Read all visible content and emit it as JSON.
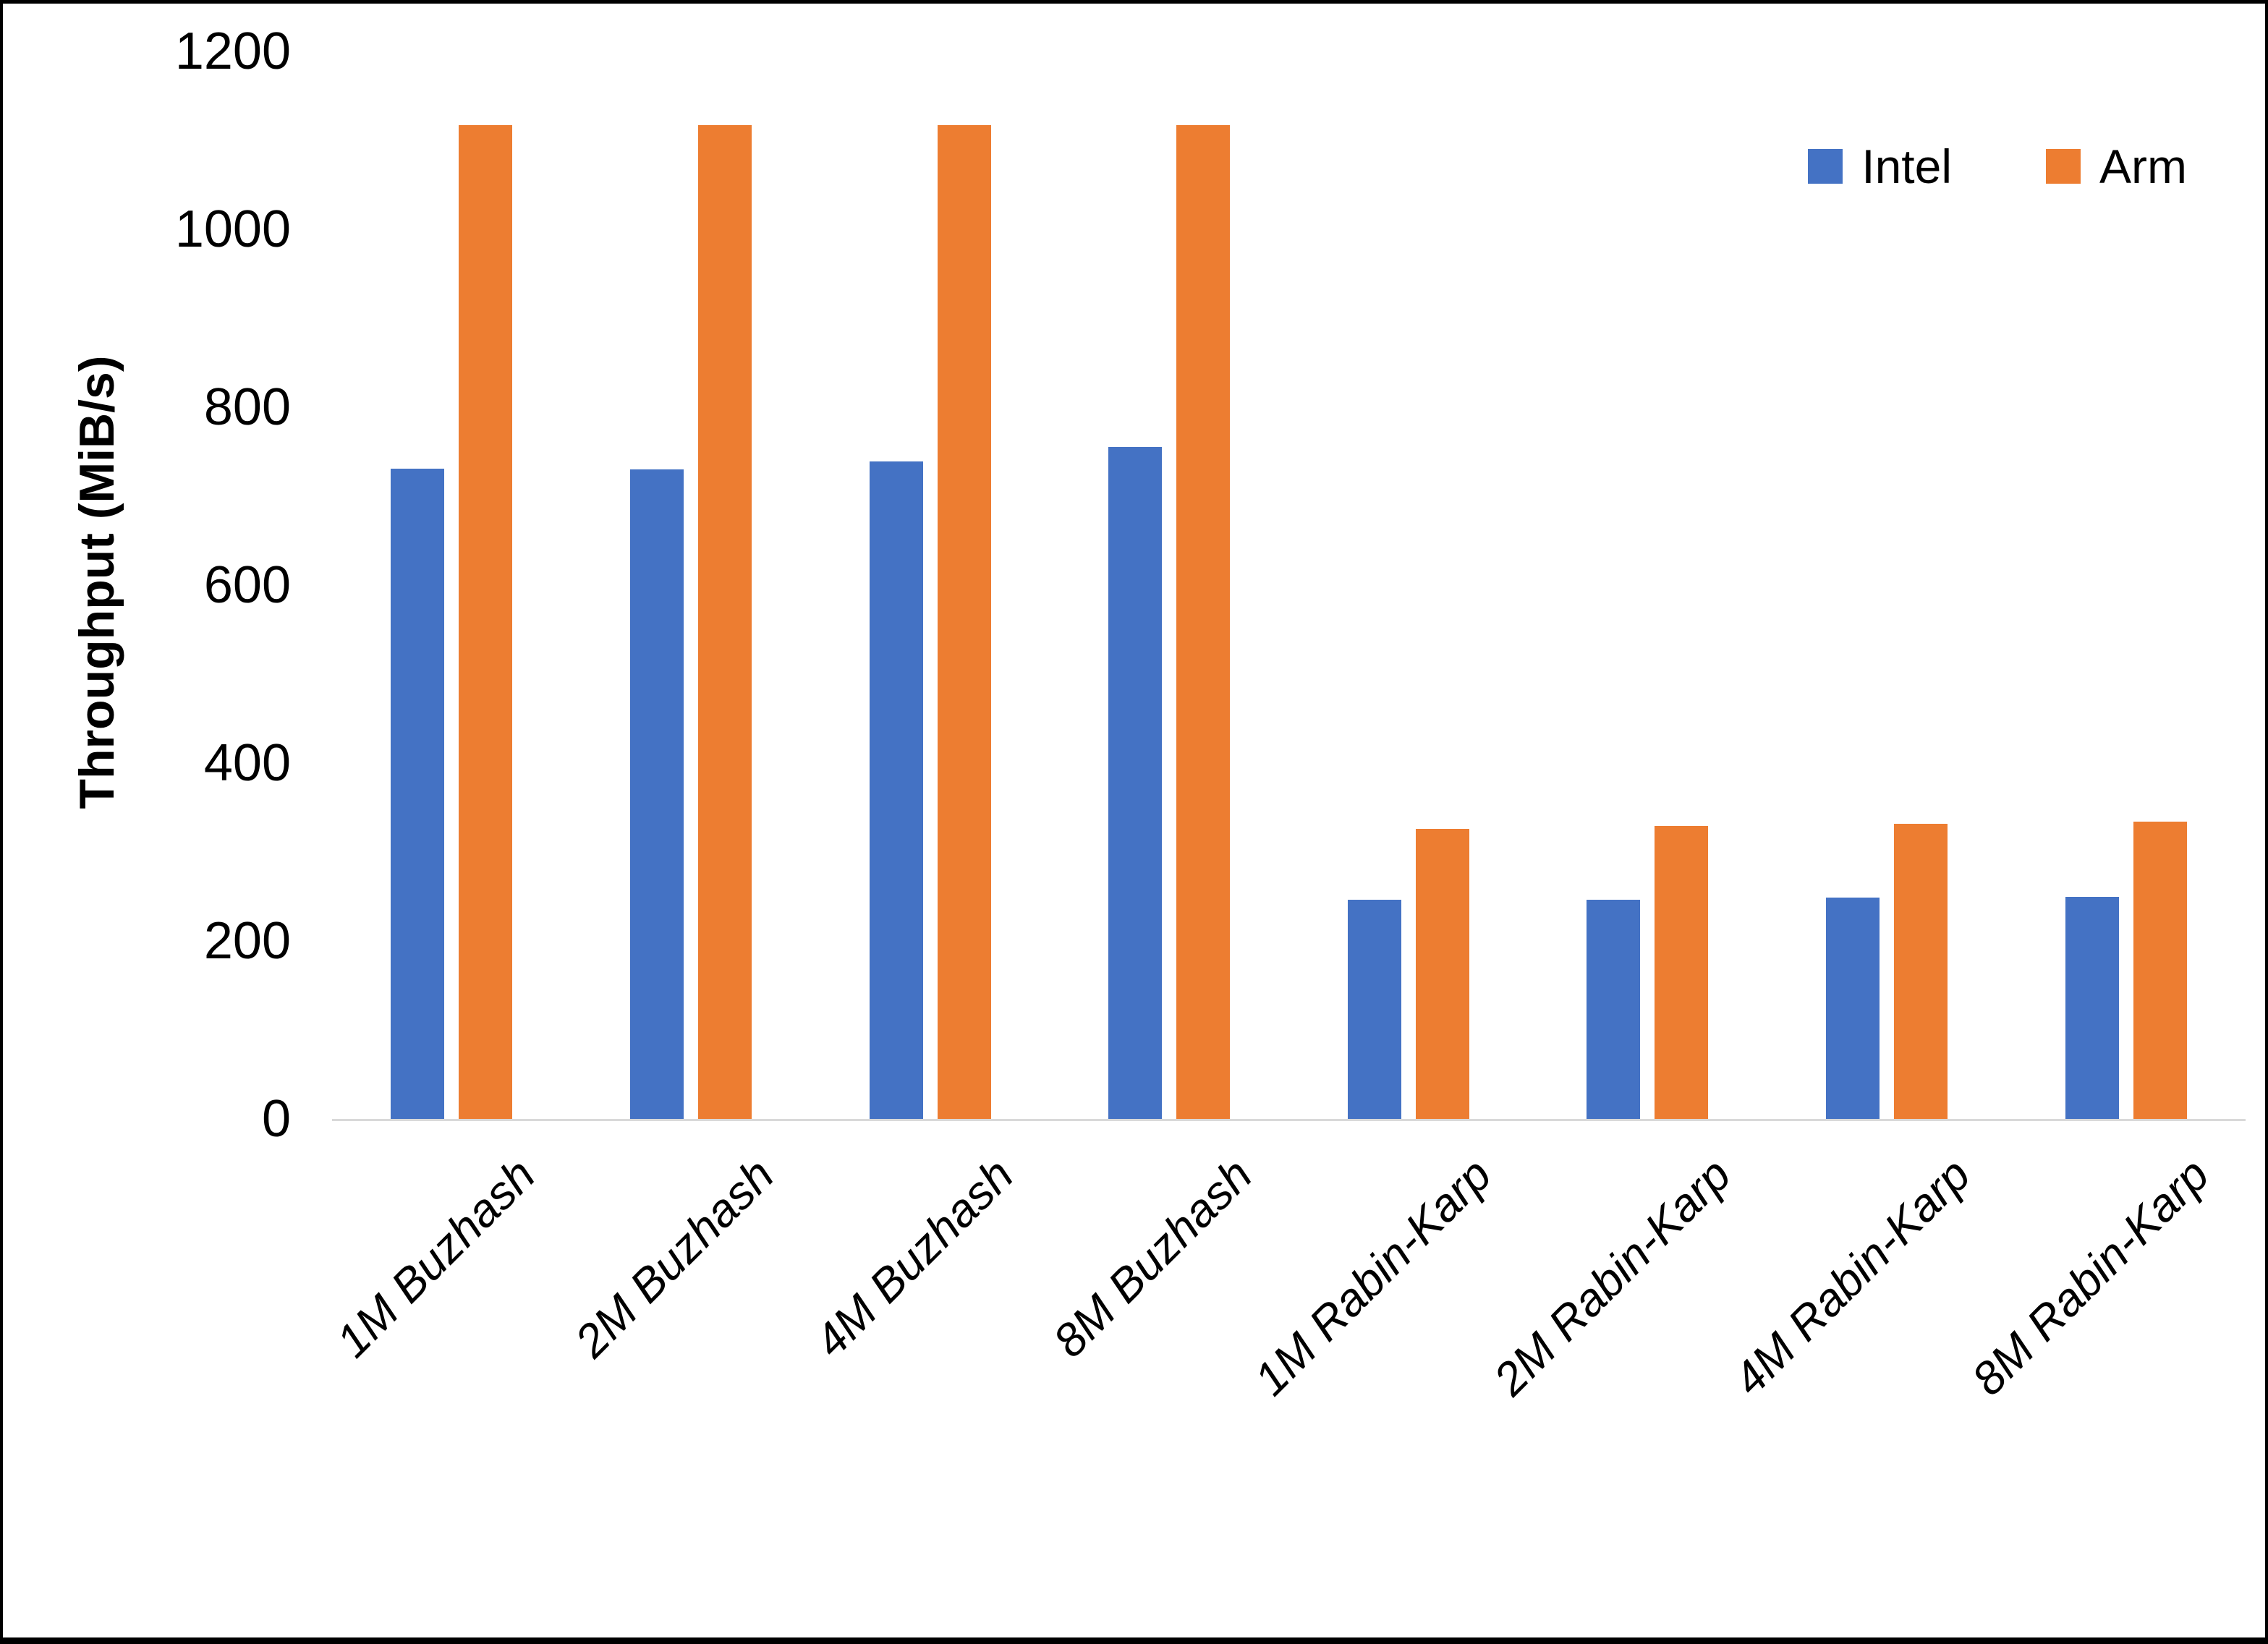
{
  "figure": {
    "background": "#ffffff",
    "frame_color": "#000000"
  },
  "chart_data": {
    "type": "bar",
    "title": "",
    "categories": [
      "1M Buzhash",
      "2M Buzhash",
      "4M Buzhash",
      "8M Buzhash",
      "1M Rabin-Karp",
      "2M Rabin-Karp",
      "4M Rabin-Karp",
      "8M Rabin-Karp"
    ],
    "series": [
      {
        "name": "Intel",
        "color": "#4472C4",
        "values": [
          731,
          730,
          739,
          755,
          246,
          246,
          249,
          250
        ]
      },
      {
        "name": "Arm",
        "color": "#ED7D31",
        "values": [
          1117,
          1117,
          1117,
          1117,
          326,
          329,
          332,
          334
        ]
      }
    ],
    "xlabel": "",
    "ylabel": "Throughput (MiB/s)",
    "ylim": [
      0,
      1200
    ],
    "ytick_interval": 200,
    "yticks": [
      "0",
      "200",
      "400",
      "600",
      "800",
      "1000",
      "1200"
    ],
    "grid": false,
    "legend_position": "top-right",
    "axis_line_color": "#D9D9D9",
    "text_color": "#000000"
  }
}
